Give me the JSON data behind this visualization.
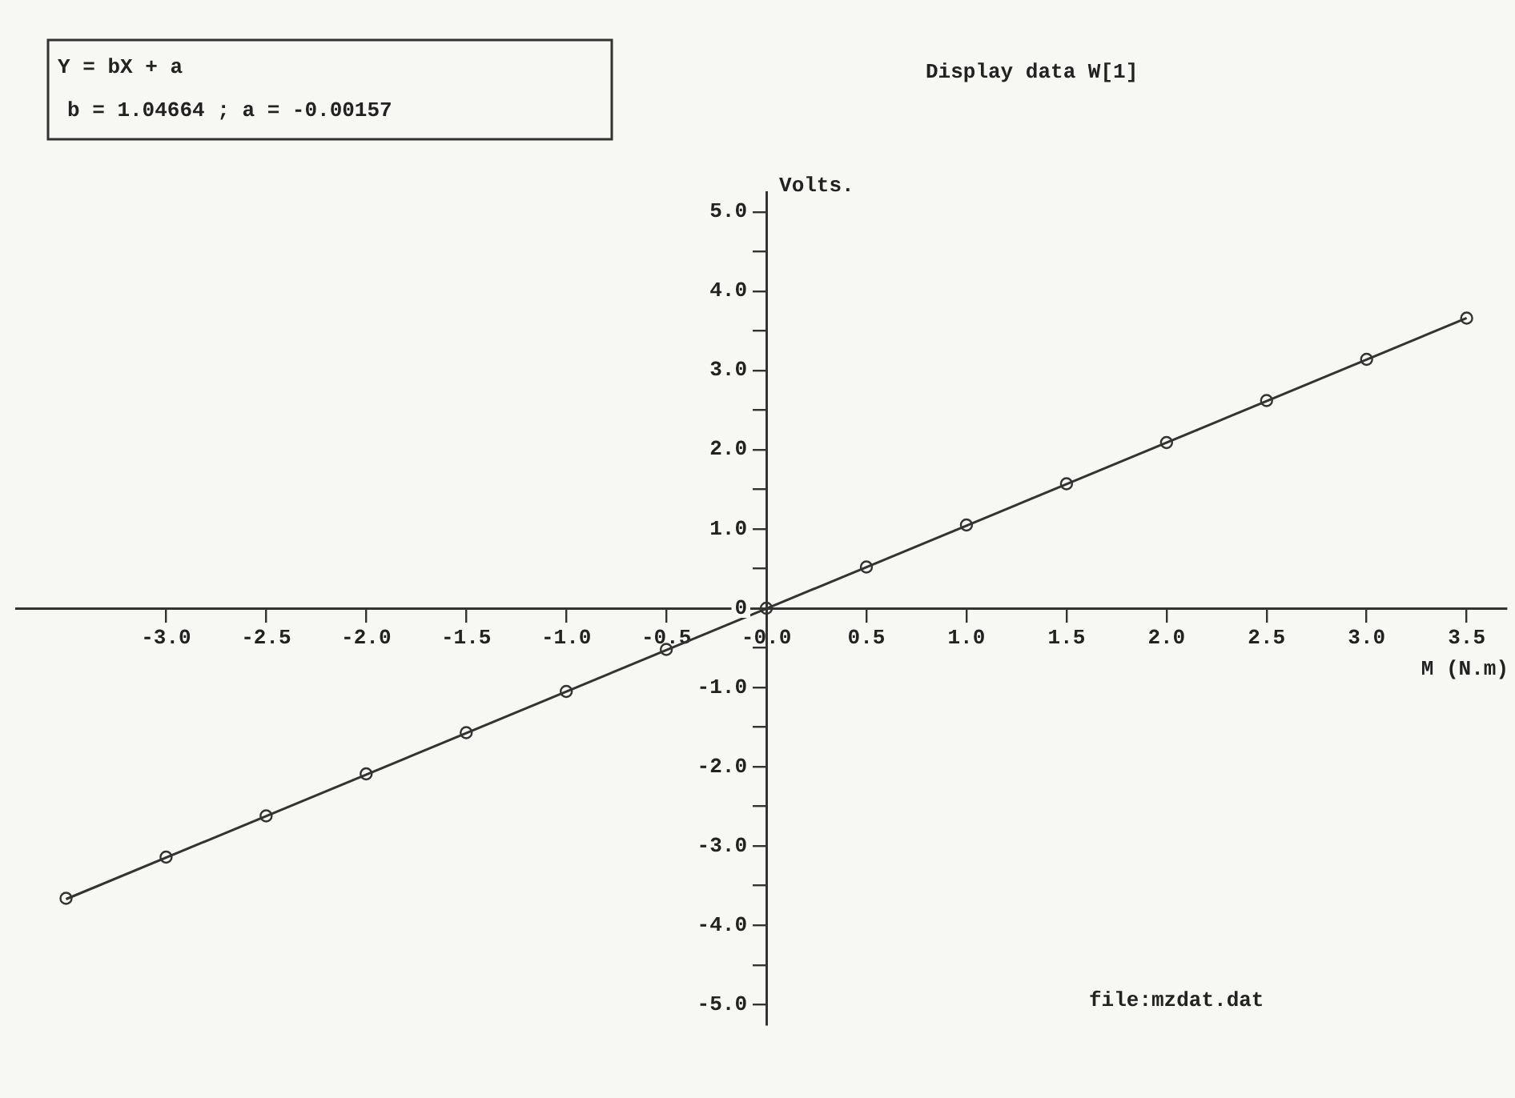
{
  "chart_data": {
    "type": "scatter",
    "title": "Display data W[1]",
    "xlabel": "M (N.m)",
    "ylabel": "Volts.",
    "annotations": [
      "Y = bX + a",
      "b = 1.04664 ; a = -0.00157",
      "file:mzdat.dat"
    ],
    "x": [
      -3.5,
      -3.0,
      -2.5,
      -2.0,
      -1.5,
      -1.0,
      -0.5,
      0,
      0.5,
      1.0,
      1.5,
      2.0,
      2.5,
      3.0,
      3.5
    ],
    "series": [
      {
        "type": "scatter",
        "color": "#333333",
        "marker": "circle",
        "values": [
          -3.66,
          -3.14,
          -2.62,
          -2.09,
          -1.57,
          -1.05,
          -0.52,
          0,
          0.52,
          1.05,
          1.57,
          2.09,
          2.62,
          3.14,
          3.66
        ]
      },
      {
        "type": "line",
        "color": "#333333",
        "marker": "none",
        "x": [
          -3.5,
          3.5
        ],
        "values": [
          -3.67,
          3.66
        ]
      }
    ],
    "xlim": [
      -3.75,
      3.7
    ],
    "ylim": [
      -5.25,
      5.25
    ],
    "xticks": [
      {
        "value": -3,
        "label": "-3.0"
      },
      {
        "value": -2.5,
        "label": "-2.5"
      },
      {
        "value": -2,
        "label": "-2.0"
      },
      {
        "value": -1.5,
        "label": "-1.5"
      },
      {
        "value": -1,
        "label": "-1.0"
      },
      {
        "value": -0.5,
        "label": "-0.5"
      },
      {
        "value": 0,
        "label": "-0.0"
      },
      {
        "value": 0.5,
        "label": "0.5"
      },
      {
        "value": 1,
        "label": "1.0"
      },
      {
        "value": 1.5,
        "label": "1.5"
      },
      {
        "value": 2,
        "label": "2.0"
      },
      {
        "value": 2.5,
        "label": "2.5"
      },
      {
        "value": 3,
        "label": "3.0"
      },
      {
        "value": 3.5,
        "label": "3.5"
      }
    ],
    "yticks": [
      {
        "value": -5,
        "label": "-5.0"
      },
      {
        "value": -4.5,
        "label": null
      },
      {
        "value": -4,
        "label": "-4.0"
      },
      {
        "value": -3.5,
        "label": null
      },
      {
        "value": -3,
        "label": "-3.0"
      },
      {
        "value": -2.5,
        "label": null
      },
      {
        "value": -2,
        "label": "-2.0"
      },
      {
        "value": -1.5,
        "label": null
      },
      {
        "value": -1,
        "label": "-1.0"
      },
      {
        "value": -0.5,
        "label": null
      },
      0,
      {
        "value": 0.5,
        "label": null
      },
      {
        "value": 1,
        "label": "1.0"
      },
      {
        "value": 1.5,
        "label": null
      },
      {
        "value": 2,
        "label": "2.0"
      },
      {
        "value": 2.5,
        "label": null
      },
      {
        "value": 3,
        "label": "3.0"
      },
      {
        "value": 3.5,
        "label": null
      },
      {
        "value": 4,
        "label": "4.0"
      },
      {
        "value": 4.5,
        "label": null
      },
      {
        "value": 5,
        "label": "5.0"
      }
    ],
    "grid": false,
    "legend": false
  }
}
